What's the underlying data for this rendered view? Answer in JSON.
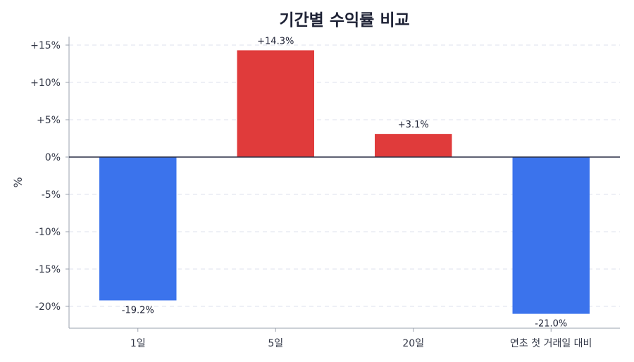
{
  "chart_data": {
    "type": "bar",
    "title": "기간별 수익률 비교",
    "xlabel": "",
    "ylabel": "%",
    "categories": [
      "1일",
      "5일",
      "20일",
      "연초 첫 거래일 대비"
    ],
    "values": [
      -19.2,
      14.3,
      3.1,
      -21.0
    ],
    "value_labels": [
      "-19.2%",
      "+14.3%",
      "+3.1%",
      "-21.0%"
    ],
    "ylim": [
      -23,
      16
    ],
    "yticks": [
      15,
      10,
      5,
      0,
      -5,
      -10,
      -15,
      -20
    ],
    "ytick_labels": [
      "+15%",
      "+10%",
      "+5%",
      "0%",
      "-5%",
      "-10%",
      "-15%",
      "-20%"
    ],
    "grid": true,
    "legend": "none",
    "colors": {
      "positive": "#e03b3b",
      "negative": "#3b73ec"
    }
  }
}
